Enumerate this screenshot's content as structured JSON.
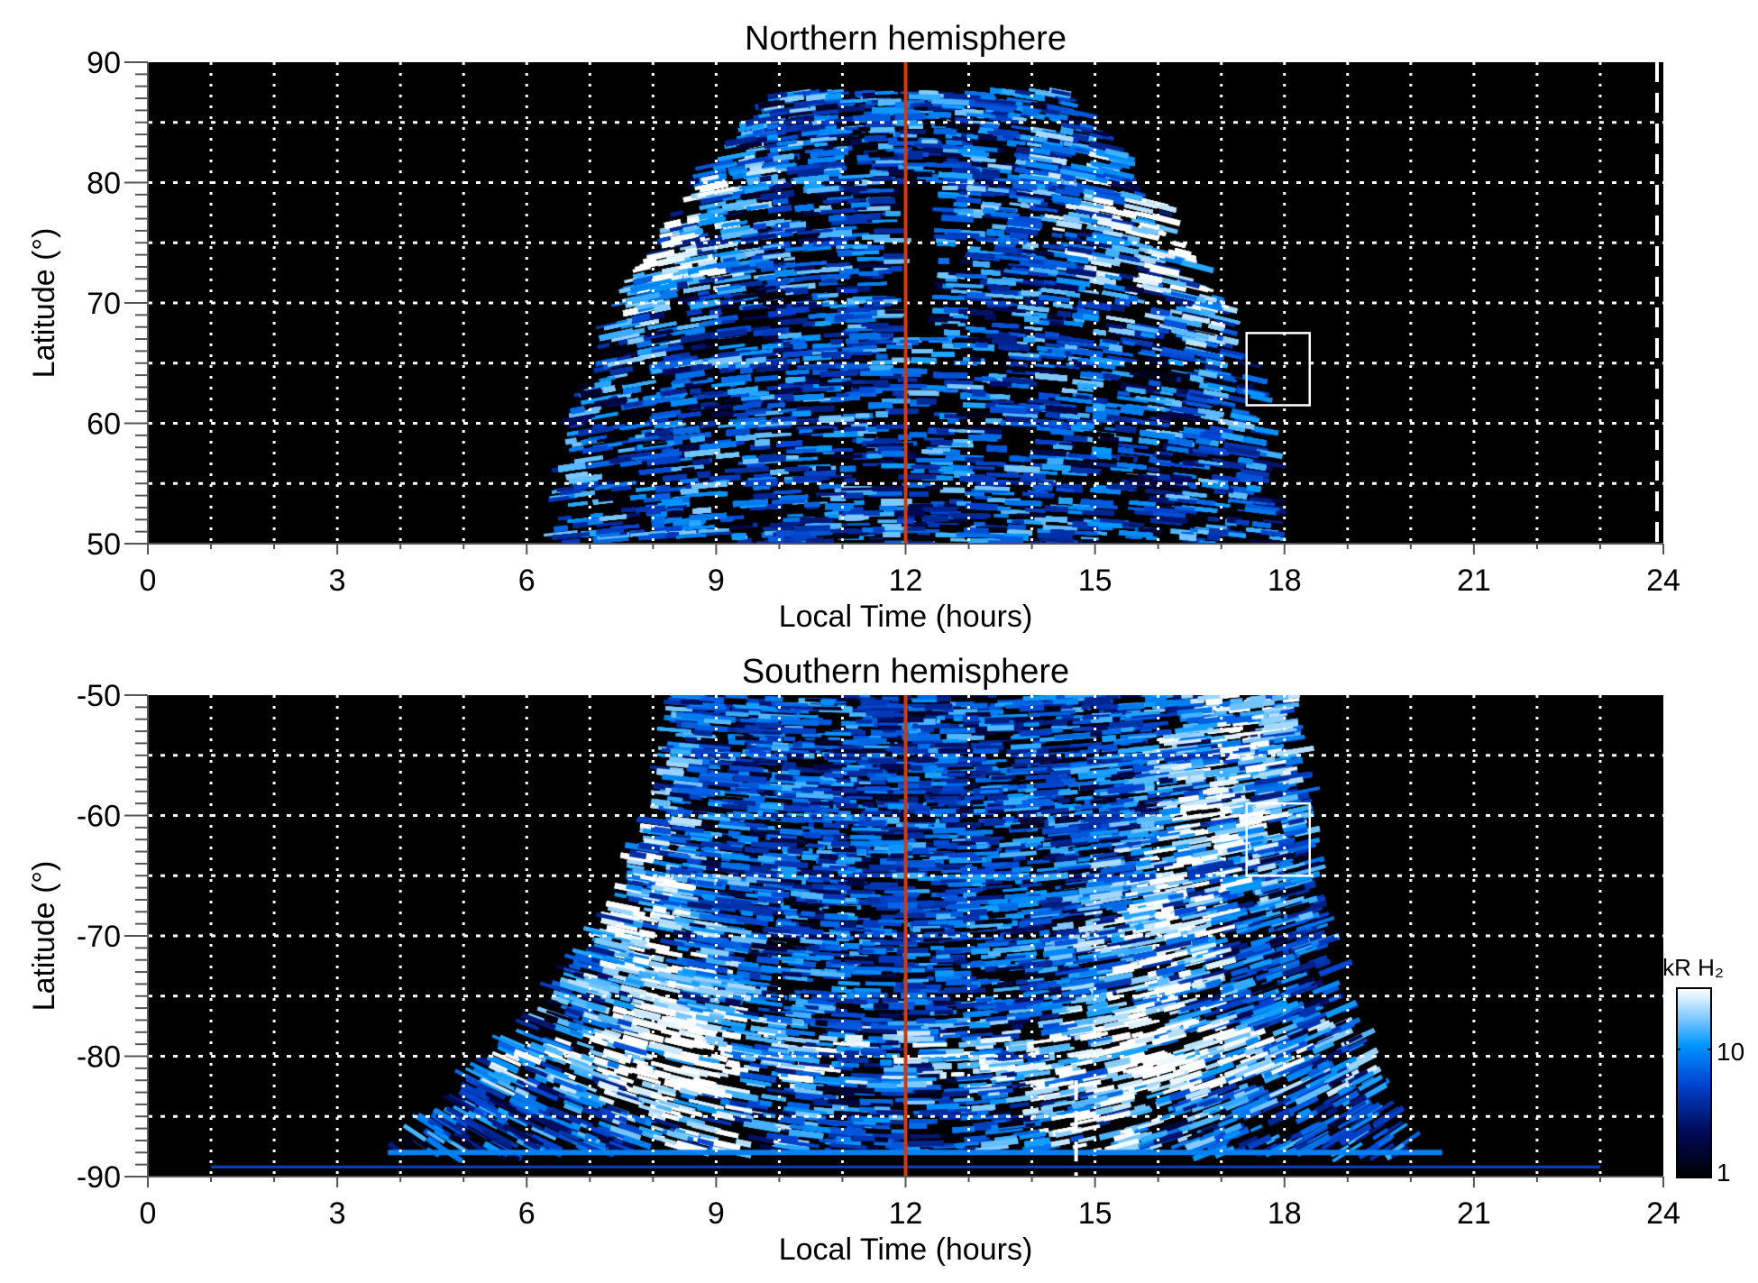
{
  "chart_data": {
    "type": "heatmap",
    "colorbar": {
      "title": "kR H₂",
      "scale": "log",
      "range": [
        1,
        30
      ],
      "tick_labels": [
        "10",
        "1"
      ],
      "tick_values": [
        10,
        1
      ]
    },
    "colors": {
      "marker_line": "#d03a10",
      "background": "#000000",
      "grid": "#ffffff"
    },
    "panels": [
      {
        "title": "Northern hemisphere",
        "xlabel": "Local Time (hours)",
        "ylabel": "Latitude (°)",
        "xlim": [
          0,
          24
        ],
        "ylim": [
          50,
          90
        ],
        "xticks": [
          "0",
          "3",
          "6",
          "9",
          "12",
          "15",
          "18",
          "21",
          "24"
        ],
        "yticks": [
          "90",
          "80",
          "70",
          "60",
          "50"
        ],
        "ytick_values": [
          90,
          80,
          70,
          60,
          50
        ],
        "grid": true,
        "marker_line_lt": 12,
        "box": {
          "lt": [
            17.4,
            18.4
          ],
          "lat": [
            61.5,
            67.5
          ]
        },
        "dashed_line": {
          "lt": 23.9,
          "lat": [
            50,
            90
          ]
        },
        "emission_extent": {
          "lt_at_lat50": [
            6.5,
            18.0
          ],
          "lt_at_lat80": [
            7.5,
            17.0
          ],
          "max_lat": 87.5
        }
      },
      {
        "title": "Southern hemisphere",
        "xlabel": "Local Time (hours)",
        "ylabel": "Latitude (°)",
        "xlim": [
          0,
          24
        ],
        "ylim": [
          -90,
          -50
        ],
        "xticks": [
          "0",
          "3",
          "6",
          "9",
          "12",
          "15",
          "18",
          "21",
          "24"
        ],
        "yticks": [
          "-50",
          "-60",
          "-70",
          "-80",
          "-90"
        ],
        "ytick_values": [
          -50,
          -60,
          -70,
          -80,
          -90
        ],
        "grid": true,
        "marker_line_lt": 12,
        "box": {
          "lt": [
            17.4,
            18.4
          ],
          "lat": [
            -65,
            -59
          ]
        },
        "dashed_line": {
          "lt": 14.7,
          "lat": [
            -90,
            -82
          ]
        },
        "emission_extent": {
          "lt_at_lat-50": [
            8.3,
            18.2
          ],
          "lt_at_lat-80": [
            5.8,
            19.0
          ],
          "lt_at_lat-89": [
            1.0,
            23.0
          ]
        }
      }
    ]
  }
}
